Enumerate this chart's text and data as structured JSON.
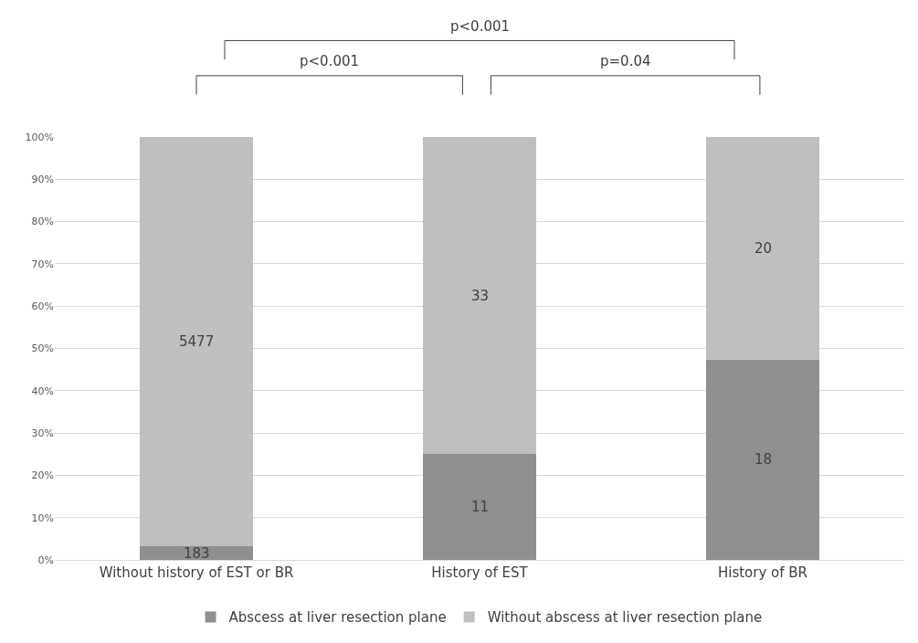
{
  "chart_data": {
    "type": "bar",
    "stacked": true,
    "categories": [
      "Without history of EST or BR",
      "History of EST",
      "History of BR"
    ],
    "series": [
      {
        "name": "Abscess at liver resection plane",
        "color": "#8f8f8f",
        "values": [
          3.2,
          25,
          47.4
        ]
      },
      {
        "name": "Without abscess at liver resection plane",
        "color": "#bfbfbf",
        "values": [
          96.8,
          75,
          52.6
        ]
      }
    ],
    "ylim": [
      0,
      100
    ],
    "yticks": [
      {
        "value": 0,
        "label": "0%"
      },
      {
        "value": 10,
        "label": "10%"
      },
      {
        "value": 20,
        "label": "20%"
      },
      {
        "value": 30,
        "label": "30%"
      },
      {
        "value": 40,
        "label": "40%"
      },
      {
        "value": 50,
        "label": "50%"
      },
      {
        "value": 60,
        "label": "60%"
      },
      {
        "value": 70,
        "label": "70%"
      },
      {
        "value": 80,
        "label": "80%"
      },
      {
        "value": 90,
        "label": "90%"
      },
      {
        "value": 100,
        "label": "100%"
      }
    ],
    "grid": "y",
    "legend": "bottom",
    "annotations": [
      "p<0.001",
      "p=0.04",
      "p<0.001",
      "183",
      "11",
      "18",
      "5477",
      "33",
      "20"
    ]
  }
}
